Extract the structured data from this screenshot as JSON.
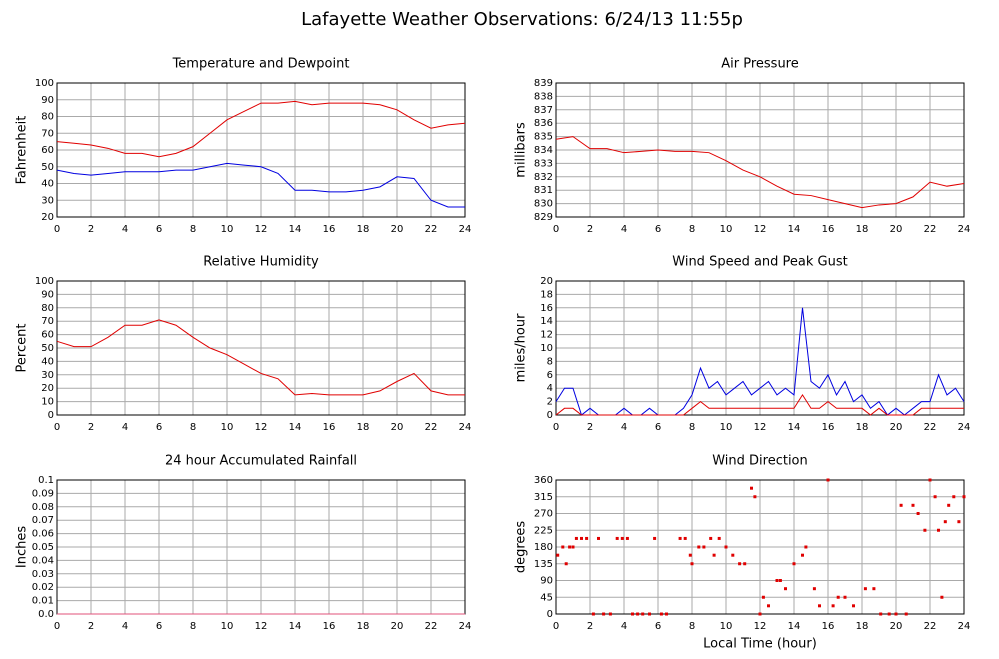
{
  "title": "Lafayette Weather Observations: 6/24/13 11:55p",
  "chart_data": [
    {
      "type": "line",
      "title": "Temperature and Dewpoint",
      "ylabel": "Fahrenheit",
      "x": [
        0,
        1,
        2,
        3,
        4,
        5,
        6,
        7,
        8,
        9,
        10,
        11,
        12,
        13,
        14,
        15,
        16,
        17,
        18,
        19,
        20,
        21,
        22,
        23,
        24
      ],
      "series": [
        {
          "color": "#e00000",
          "values": [
            65,
            64,
            63,
            61,
            58,
            58,
            56,
            58,
            62,
            70,
            78,
            83,
            88,
            88,
            89,
            87,
            88,
            88,
            88,
            87,
            84,
            78,
            73,
            75,
            76
          ]
        },
        {
          "color": "#0000e0",
          "values": [
            48,
            46,
            45,
            46,
            47,
            47,
            47,
            48,
            48,
            50,
            52,
            51,
            50,
            46,
            36,
            36,
            35,
            35,
            36,
            38,
            44,
            43,
            30,
            26,
            26
          ]
        }
      ],
      "xlim": [
        0,
        24
      ],
      "xticks": [
        0,
        2,
        4,
        6,
        8,
        10,
        12,
        14,
        16,
        18,
        20,
        22,
        24
      ],
      "ylim": [
        20,
        100
      ],
      "yticks": [
        20,
        30,
        40,
        50,
        60,
        70,
        80,
        90,
        100
      ],
      "grid": true
    },
    {
      "type": "line",
      "title": "Air Pressure",
      "ylabel": "millibars",
      "x": [
        0,
        1,
        2,
        3,
        4,
        5,
        6,
        7,
        8,
        9,
        10,
        11,
        12,
        13,
        14,
        15,
        16,
        17,
        18,
        19,
        20,
        21,
        22,
        23,
        24
      ],
      "series": [
        {
          "color": "#e00000",
          "values": [
            834.8,
            835,
            834.1,
            834.1,
            833.8,
            833.9,
            834,
            833.9,
            833.9,
            833.8,
            833.2,
            832.5,
            832,
            831.3,
            830.7,
            830.6,
            830.3,
            830,
            829.7,
            829.9,
            830,
            830.5,
            831.6,
            831.3,
            831.5
          ]
        }
      ],
      "xlim": [
        0,
        24
      ],
      "xticks": [
        0,
        2,
        4,
        6,
        8,
        10,
        12,
        14,
        16,
        18,
        20,
        22,
        24
      ],
      "ylim": [
        829,
        839
      ],
      "yticks": [
        829,
        830,
        831,
        832,
        833,
        834,
        835,
        836,
        837,
        838,
        839
      ],
      "grid": true
    },
    {
      "type": "line",
      "title": "Relative Humidity",
      "ylabel": "Percent",
      "x": [
        0,
        1,
        2,
        3,
        4,
        5,
        6,
        7,
        8,
        9,
        10,
        11,
        12,
        13,
        14,
        15,
        16,
        17,
        18,
        19,
        20,
        21,
        22,
        23,
        24
      ],
      "series": [
        {
          "color": "#e00000",
          "values": [
            55,
            51,
            51,
            58,
            67,
            67,
            71,
            67,
            58,
            50,
            45,
            38,
            31,
            27,
            15,
            16,
            15,
            15,
            15,
            18,
            25,
            31,
            18,
            15,
            15
          ]
        }
      ],
      "xlim": [
        0,
        24
      ],
      "xticks": [
        0,
        2,
        4,
        6,
        8,
        10,
        12,
        14,
        16,
        18,
        20,
        22,
        24
      ],
      "ylim": [
        0,
        100
      ],
      "yticks": [
        0,
        10,
        20,
        30,
        40,
        50,
        60,
        70,
        80,
        90,
        100
      ],
      "grid": true
    },
    {
      "type": "line",
      "title": "Wind Speed and Peak Gust",
      "ylabel": "miles/hour",
      "x": [
        0,
        0.5,
        1,
        1.5,
        2,
        2.5,
        3,
        3.5,
        4,
        4.5,
        5,
        5.5,
        6,
        6.5,
        7,
        7.5,
        8,
        8.5,
        9,
        9.5,
        10,
        10.5,
        11,
        11.5,
        12,
        12.5,
        13,
        13.5,
        14,
        14.5,
        15,
        15.5,
        16,
        16.5,
        17,
        17.5,
        18,
        18.5,
        19,
        19.5,
        20,
        20.5,
        21,
        21.5,
        22,
        22.5,
        23,
        23.5,
        24
      ],
      "series": [
        {
          "color": "#0000e0",
          "values": [
            2,
            4,
            4,
            0,
            1,
            0,
            0,
            0,
            1,
            0,
            0,
            1,
            0,
            0,
            0,
            1,
            3,
            7,
            4,
            5,
            3,
            4,
            5,
            3,
            4,
            5,
            3,
            4,
            3,
            16,
            5,
            4,
            6,
            3,
            5,
            2,
            3,
            1,
            2,
            0,
            1,
            0,
            1,
            2,
            2,
            6,
            3,
            4,
            2
          ]
        },
        {
          "color": "#e00000",
          "values": [
            0,
            1,
            1,
            0,
            0,
            0,
            0,
            0,
            0,
            0,
            0,
            0,
            0,
            0,
            0,
            0,
            1,
            2,
            1,
            1,
            1,
            1,
            1,
            1,
            1,
            1,
            1,
            1,
            1,
            3,
            1,
            1,
            2,
            1,
            1,
            1,
            1,
            0,
            1,
            0,
            0,
            0,
            0,
            1,
            1,
            1,
            1,
            1,
            1
          ]
        }
      ],
      "xlim": [
        0,
        24
      ],
      "xticks": [
        0,
        2,
        4,
        6,
        8,
        10,
        12,
        14,
        16,
        18,
        20,
        22,
        24
      ],
      "ylim": [
        0,
        20
      ],
      "yticks": [
        0,
        2,
        4,
        6,
        8,
        10,
        12,
        14,
        16,
        18,
        20
      ],
      "grid": true
    },
    {
      "type": "line",
      "title": "24 hour Accumulated Rainfall",
      "ylabel": "Inches",
      "x": [
        0,
        24
      ],
      "series": [
        {
          "color": "#e0507a",
          "values": [
            0,
            0
          ]
        }
      ],
      "xlim": [
        0,
        24
      ],
      "xticks": [
        0,
        2,
        4,
        6,
        8,
        10,
        12,
        14,
        16,
        18,
        20,
        22,
        24
      ],
      "ylim": [
        0,
        0.1
      ],
      "yticks": [
        {
          "value": 0,
          "label": "0.0"
        },
        0.01,
        0.02,
        0.03,
        0.04,
        0.05,
        0.06,
        0.07,
        0.08,
        0.09,
        0.1
      ],
      "grid": true
    },
    {
      "type": "scatter",
      "title": "Wind Direction",
      "ylabel": "degrees",
      "xlabel": "Local Time (hour)",
      "color": "#e00000",
      "x": [
        0.1,
        0.4,
        0.6,
        0.8,
        1,
        1.2,
        1.5,
        1.8,
        2.2,
        2.5,
        2.8,
        3.2,
        3.6,
        3.9,
        4.2,
        4.5,
        4.8,
        5.1,
        5.5,
        5.8,
        6.2,
        6.5,
        7.3,
        7.6,
        7.9,
        8,
        8.4,
        8.7,
        9.1,
        9.3,
        9.6,
        10,
        10.4,
        10.8,
        11.1,
        11.5,
        11.7,
        12,
        12.2,
        12.5,
        13,
        13.2,
        13.5,
        14,
        14.5,
        14.7,
        15.2,
        15.5,
        16,
        16.3,
        16.6,
        17,
        17.5,
        18.2,
        18.7,
        19.1,
        19.6,
        20,
        20.3,
        20.6,
        21,
        21.3,
        21.7,
        22,
        22.3,
        22.5,
        22.7,
        22.9,
        23.1,
        23.4,
        23.7,
        24
      ],
      "values": [
        158,
        180,
        135,
        180,
        180,
        203,
        203,
        203,
        0,
        203,
        0,
        0,
        203,
        203,
        203,
        0,
        0,
        0,
        0,
        203,
        0,
        0,
        203,
        203,
        158,
        135,
        180,
        180,
        203,
        158,
        203,
        180,
        158,
        135,
        135,
        338,
        315,
        0,
        45,
        22,
        90,
        90,
        68,
        135,
        158,
        180,
        68,
        22,
        360,
        22,
        45,
        45,
        22,
        68,
        68,
        0,
        0,
        0,
        292,
        0,
        292,
        270,
        225,
        360,
        315,
        225,
        45,
        248,
        292,
        315,
        248,
        315
      ],
      "xlim": [
        0,
        24
      ],
      "xticks": [
        0,
        2,
        4,
        6,
        8,
        10,
        12,
        14,
        16,
        18,
        20,
        22,
        24
      ],
      "ylim": [
        0,
        360
      ],
      "yticks": [
        0,
        45,
        90,
        135,
        180,
        225,
        270,
        315,
        360
      ],
      "grid": true
    }
  ]
}
